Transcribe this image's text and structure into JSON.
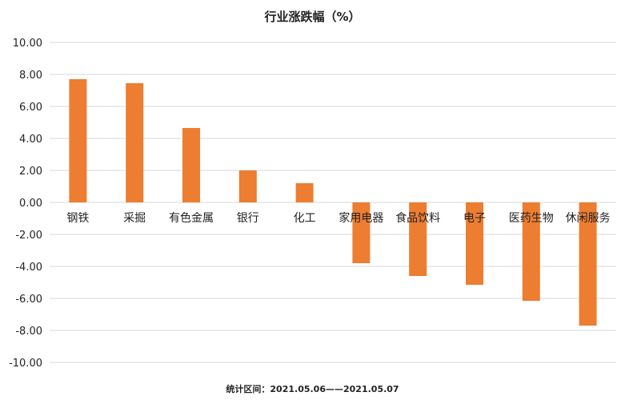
{
  "chart_data": {
    "type": "bar",
    "title": "行业涨跌幅（%）",
    "categories": [
      "钢铁",
      "采掘",
      "有色金属",
      "银行",
      "化工",
      "家用电器",
      "食品饮料",
      "电子",
      "医药生物",
      "休闲服务"
    ],
    "values": [
      7.7,
      7.45,
      4.65,
      2.0,
      1.2,
      -3.8,
      -4.6,
      -5.15,
      -6.15,
      -7.7
    ],
    "ylim": [
      -10,
      10
    ],
    "yticks": [
      "10.00",
      "8.00",
      "6.00",
      "4.00",
      "2.00",
      "0.00",
      "-2.00",
      "-4.00",
      "-6.00",
      "-8.00",
      "-10.00"
    ],
    "ytick_values": [
      10,
      8,
      6,
      4,
      2,
      0,
      -2,
      -4,
      -6,
      -8,
      -10
    ],
    "grid": true,
    "bar_color": "#ED7D31",
    "grid_color": "#D9D9D9",
    "footer": "统计区间：2021.05.06——2021.05.07"
  }
}
